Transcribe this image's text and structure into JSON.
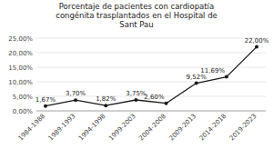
{
  "chart_data": {
    "type": "line",
    "title": "Porcentaje de pacientes con cardiopatía\ncongénita trasplantados en el Hospital de\nSant Pau",
    "categories": [
      "1984-1988",
      "1989-1993",
      "1994-1998",
      "1999-2003",
      "2004-2008",
      "2009-2013",
      "2014-2018",
      "2019-2023"
    ],
    "values": [
      1.67,
      3.7,
      1.82,
      3.75,
      2.6,
      9.52,
      11.69,
      22.0
    ],
    "value_labels": [
      "1,67%",
      "3,70%",
      "1,82%",
      "3,75%",
      "2,60%",
      "9,52%",
      "11,69%",
      "22,00%"
    ],
    "ylim": [
      0,
      25
    ],
    "yticks": [
      {
        "value": 0,
        "label": "0,00%"
      },
      {
        "value": 5,
        "label": "5,00%"
      },
      {
        "value": 10,
        "label": "10,00%"
      },
      {
        "value": 15,
        "label": "15,00%"
      },
      {
        "value": 20,
        "label": "20,00%"
      },
      {
        "value": 25,
        "label": "25,00%"
      }
    ],
    "color": "#1a1a1a",
    "marker": "circle",
    "grid": true,
    "data_labels": true
  }
}
